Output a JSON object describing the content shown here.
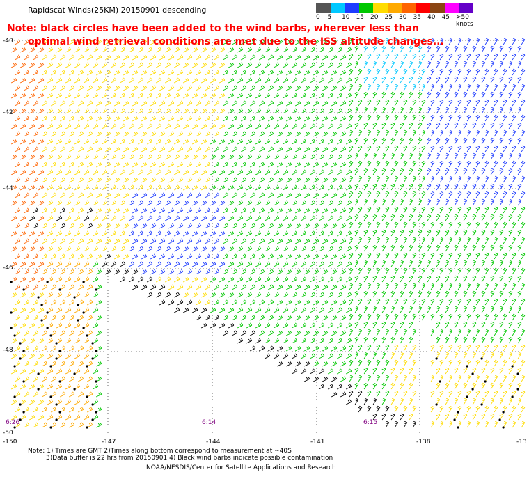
{
  "header": {
    "title": "Rapidscat Winds(25KM) 20150901 descending",
    "note_line1": "Note: black circles have been added to the wind barbs, wherever less than",
    "note_line2": "optimal wind retrieval conditions are met due to the ISS altitude changes..."
  },
  "colorbar": {
    "labels": [
      "0",
      "5",
      "10",
      "15",
      "20",
      "25",
      "30",
      "35",
      "40",
      "45",
      ">50 knots"
    ],
    "colors": [
      "#555555",
      "#00c8ff",
      "#1e3cff",
      "#00c800",
      "#ffdc00",
      "#ffaa00",
      "#ff6400",
      "#ff0000",
      "#8b4513",
      "#ff00ff",
      "#6400c8"
    ]
  },
  "map": {
    "lat_labels": [
      "-40",
      "-42",
      "-44",
      "-46",
      "-48",
      "-50"
    ],
    "lon_labels": [
      "-150",
      "-147",
      "-144",
      "-141",
      "-138",
      "-13"
    ],
    "time_labels": [
      "6:26",
      "6:14",
      "6:15"
    ]
  },
  "footer": {
    "note1": "Note: 1) Times are GMT 2)Times along bottom correspond to measurement at ~40S",
    "note2": "3)Data buffer is 22 hrs from 20150901 4) Black wind barbs indicate possible contamination",
    "credit": "NOAA/NESDIS/Center for Satellite Applications and Research"
  }
}
